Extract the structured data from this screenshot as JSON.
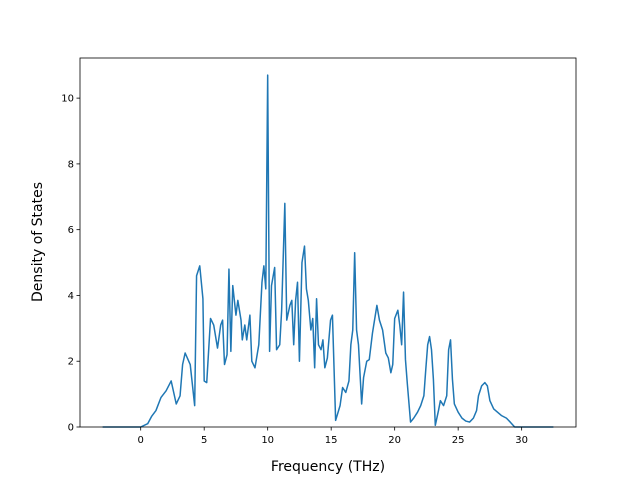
{
  "chart_data": {
    "type": "line",
    "x_label": "Frequency (THz)",
    "y_label": "Density of States",
    "color": "#1f77b4",
    "xlim": [
      -4.78,
      34.28
    ],
    "ylim": [
      0,
      11.22
    ],
    "xticks": [
      0,
      5,
      10,
      15,
      20,
      25,
      30
    ],
    "yticks": [
      0,
      2,
      4,
      6,
      8,
      10
    ],
    "x": [
      -3,
      0,
      0.55,
      0.87,
      1.2,
      1.6,
      2.0,
      2.4,
      2.8,
      3.1,
      3.3,
      3.5,
      3.9,
      4.25,
      4.4,
      4.65,
      4.9,
      5.0,
      5.2,
      5.5,
      5.75,
      6.05,
      6.3,
      6.45,
      6.6,
      6.8,
      6.95,
      7.1,
      7.25,
      7.5,
      7.65,
      7.9,
      8.0,
      8.2,
      8.35,
      8.6,
      8.75,
      9.0,
      9.3,
      9.55,
      9.7,
      9.85,
      10.0,
      10.15,
      10.3,
      10.55,
      10.7,
      10.95,
      11.1,
      11.35,
      11.5,
      11.75,
      11.9,
      12.05,
      12.2,
      12.35,
      12.5,
      12.7,
      12.9,
      13.05,
      13.2,
      13.4,
      13.55,
      13.7,
      13.85,
      14.0,
      14.2,
      14.35,
      14.5,
      14.7,
      14.95,
      15.1,
      15.35,
      15.7,
      15.9,
      16.15,
      16.4,
      16.55,
      16.7,
      16.85,
      17.0,
      17.15,
      17.4,
      17.55,
      17.8,
      18.0,
      18.25,
      18.6,
      18.8,
      19.05,
      19.3,
      19.5,
      19.7,
      19.85,
      20.0,
      20.25,
      20.4,
      20.55,
      20.7,
      20.85,
      21.0,
      21.25,
      21.5,
      21.8,
      22.05,
      22.3,
      22.45,
      22.6,
      22.75,
      22.9,
      23.05,
      23.2,
      23.45,
      23.6,
      23.85,
      24.1,
      24.25,
      24.4,
      24.55,
      24.7,
      25.0,
      25.3,
      25.6,
      25.9,
      26.2,
      26.45,
      26.6,
      26.85,
      27.1,
      27.3,
      27.5,
      27.8,
      28.1,
      28.4,
      28.8,
      29.1,
      29.45,
      32.5
    ],
    "values": [
      0,
      0,
      0.1,
      0.33,
      0.5,
      0.9,
      1.1,
      1.4,
      0.7,
      0.95,
      1.9,
      2.25,
      1.9,
      0.65,
      4.6,
      4.9,
      3.9,
      1.4,
      1.35,
      3.3,
      3.1,
      2.4,
      3.1,
      3.25,
      1.9,
      2.2,
      4.8,
      2.3,
      4.3,
      3.4,
      3.85,
      3.25,
      2.65,
      3.1,
      2.65,
      3.4,
      2.0,
      1.8,
      2.5,
      4.4,
      4.9,
      4.2,
      10.7,
      2.3,
      4.3,
      4.85,
      2.35,
      2.5,
      3.55,
      6.8,
      3.25,
      3.7,
      3.85,
      2.5,
      3.85,
      4.4,
      2.0,
      5.0,
      5.5,
      4.2,
      3.85,
      2.95,
      3.3,
      1.8,
      3.9,
      2.5,
      2.35,
      2.65,
      1.8,
      2.1,
      3.25,
      3.4,
      0.2,
      0.65,
      1.2,
      1.05,
      1.4,
      2.5,
      2.95,
      5.3,
      2.95,
      2.5,
      0.7,
      1.5,
      2.0,
      2.05,
      2.85,
      3.7,
      3.25,
      2.95,
      2.25,
      2.1,
      1.65,
      1.9,
      3.3,
      3.55,
      3.1,
      2.5,
      4.1,
      2.05,
      1.3,
      0.15,
      0.27,
      0.45,
      0.65,
      0.95,
      1.75,
      2.5,
      2.75,
      2.35,
      1.45,
      0.05,
      0.5,
      0.8,
      0.65,
      0.95,
      2.35,
      2.65,
      1.45,
      0.7,
      0.45,
      0.27,
      0.18,
      0.15,
      0.27,
      0.5,
      0.95,
      1.25,
      1.35,
      1.25,
      0.8,
      0.55,
      0.45,
      0.35,
      0.27,
      0.15,
      0,
      0
    ]
  }
}
